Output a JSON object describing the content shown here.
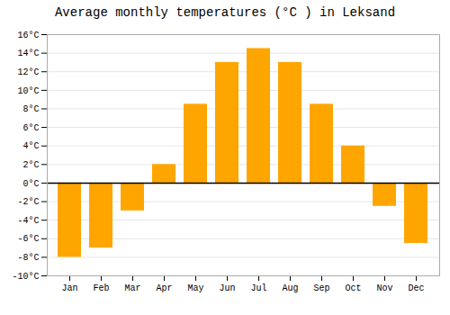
{
  "chart_data": {
    "type": "bar",
    "title": "Average monthly temperatures (°C ) in Leksand",
    "categories": [
      "Jan",
      "Feb",
      "Mar",
      "Apr",
      "May",
      "Jun",
      "Jul",
      "Aug",
      "Sep",
      "Oct",
      "Nov",
      "Dec"
    ],
    "values": [
      -8.0,
      -7.0,
      -3.0,
      2.0,
      8.5,
      13.0,
      14.5,
      13.0,
      8.5,
      4.0,
      -2.5,
      -6.5
    ],
    "color": "#FFA500",
    "ylim": [
      -10,
      16
    ],
    "yticks": [
      {
        "value": -10,
        "label": "-10°C"
      },
      {
        "value": -8,
        "label": "-8°C"
      },
      {
        "value": -6,
        "label": "-6°C"
      },
      {
        "value": -4,
        "label": "-4°C"
      },
      {
        "value": -2,
        "label": "-2°C"
      },
      {
        "value": 0,
        "label": "0°C"
      },
      {
        "value": 2,
        "label": "2°C"
      },
      {
        "value": 4,
        "label": "4°C"
      },
      {
        "value": 6,
        "label": "6°C"
      },
      {
        "value": 8,
        "label": "8°C"
      },
      {
        "value": 10,
        "label": "10°C"
      },
      {
        "value": 12,
        "label": "12°C"
      },
      {
        "value": 14,
        "label": "14°C"
      },
      {
        "value": 16,
        "label": "16°C"
      }
    ],
    "grid": true
  }
}
